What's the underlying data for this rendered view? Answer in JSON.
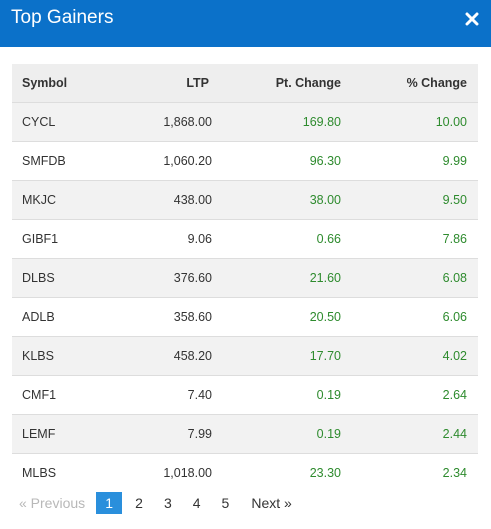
{
  "header": {
    "title": "Top Gainers",
    "close_icon": "close-icon"
  },
  "table": {
    "columns": [
      "Symbol",
      "LTP",
      "Pt. Change",
      "% Change"
    ],
    "rows": [
      {
        "symbol": "CYCL",
        "ltp": "1,868.00",
        "pt_change": "169.80",
        "pct_change": "10.00"
      },
      {
        "symbol": "SMFDB",
        "ltp": "1,060.20",
        "pt_change": "96.30",
        "pct_change": "9.99"
      },
      {
        "symbol": "MKJC",
        "ltp": "438.00",
        "pt_change": "38.00",
        "pct_change": "9.50"
      },
      {
        "symbol": "GIBF1",
        "ltp": "9.06",
        "pt_change": "0.66",
        "pct_change": "7.86"
      },
      {
        "symbol": "DLBS",
        "ltp": "376.60",
        "pt_change": "21.60",
        "pct_change": "6.08"
      },
      {
        "symbol": "ADLB",
        "ltp": "358.60",
        "pt_change": "20.50",
        "pct_change": "6.06"
      },
      {
        "symbol": "KLBS",
        "ltp": "458.20",
        "pt_change": "17.70",
        "pct_change": "4.02"
      },
      {
        "symbol": "CMF1",
        "ltp": "7.40",
        "pt_change": "0.19",
        "pct_change": "2.64"
      },
      {
        "symbol": "LEMF",
        "ltp": "7.99",
        "pt_change": "0.19",
        "pct_change": "2.44"
      },
      {
        "symbol": "MLBS",
        "ltp": "1,018.00",
        "pt_change": "23.30",
        "pct_change": "2.34"
      }
    ]
  },
  "pagination": {
    "previous_label": "« Previous",
    "next_label": "Next »",
    "pages": [
      "1",
      "2",
      "3",
      "4",
      "5"
    ],
    "active_page": "1"
  },
  "colors": {
    "header_bg": "#0b71c9",
    "gain_text": "#2e8b2e",
    "active_page_bg": "#2a8fdc"
  }
}
